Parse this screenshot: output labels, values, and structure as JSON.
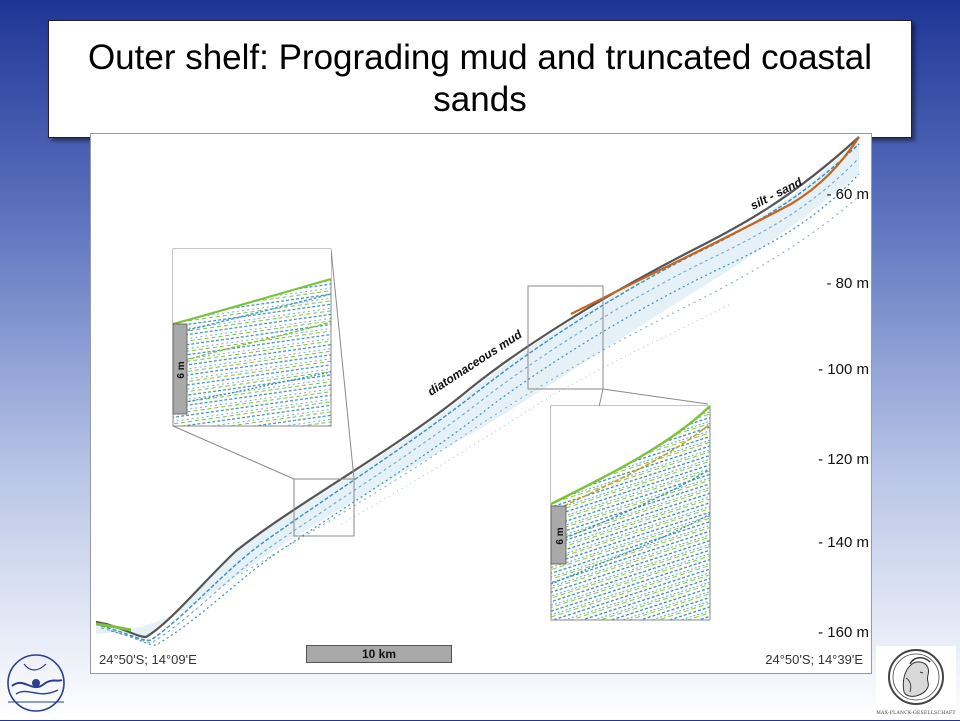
{
  "slide": {
    "title": "Outer shelf: Prograding mud and truncated coastal sands"
  },
  "figure": {
    "labels": {
      "silt_sand": "silt - sand",
      "diatomaceous_mud": "diatomaceous mud",
      "inset_scale_left": "6 m",
      "inset_scale_right": "6 m"
    },
    "depth_axis": [
      "- 60 m",
      "- 80 m",
      "- 100 m",
      "- 120 m",
      "- 140 m",
      "- 160 m"
    ],
    "coord_left": "24°50'S; 14°09'E",
    "coord_right": "24°50'S; 14°39'E",
    "scalebar_label": "10 km"
  },
  "logos": {
    "left": "circular-institute-logo",
    "right": "max-planck-minerva-logo",
    "right_caption": "MAX-PLANCK-GESELLSCHAFT"
  },
  "colors": {
    "reflector_blue": "#3b8fb8",
    "reflector_green": "#7cc23a",
    "surface_orange": "#c8641e",
    "inset_border": "#8a8a8a"
  }
}
